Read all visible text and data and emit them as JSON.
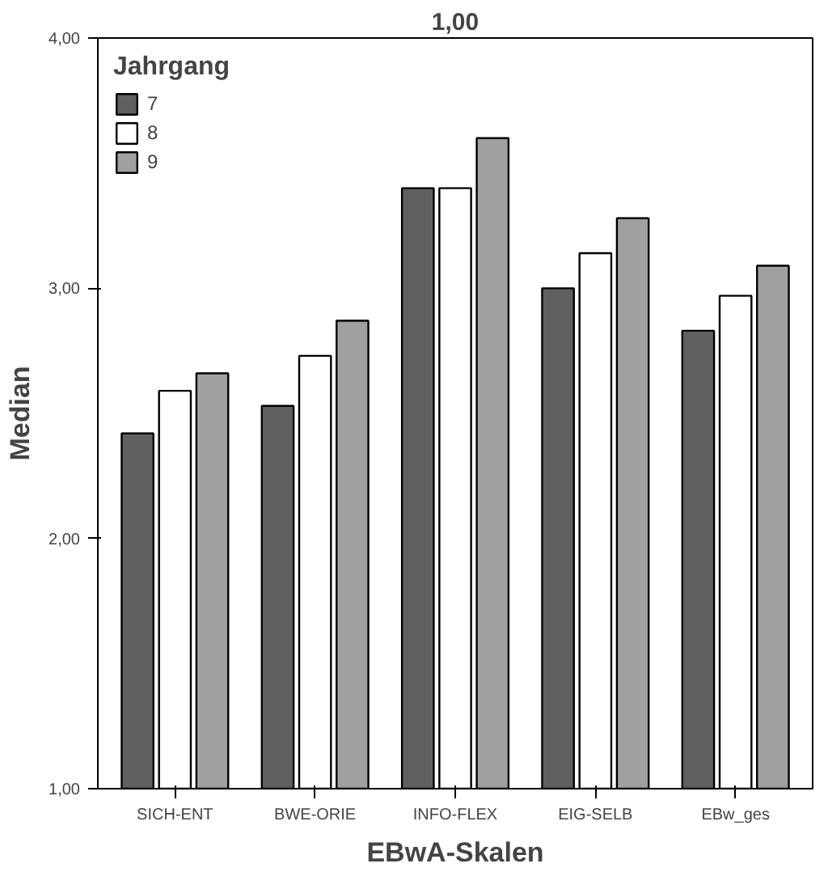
{
  "chart_data": {
    "type": "bar",
    "title": "1,00",
    "xlabel": "EBwA-Skalen",
    "ylabel": "Median",
    "legend_title": "Jahrgang",
    "categories": [
      "SICH-ENT",
      "BWE-ORIE",
      "INFO-FLEX",
      "EIG-SELB",
      "EBw_ges"
    ],
    "series": [
      {
        "name": "7",
        "color": "#606060",
        "values": [
          2.42,
          2.53,
          3.4,
          3.0,
          2.83
        ]
      },
      {
        "name": "8",
        "color": "#ffffff",
        "values": [
          2.59,
          2.73,
          3.4,
          3.14,
          2.97
        ]
      },
      {
        "name": "9",
        "color": "#a0a0a0",
        "values": [
          2.66,
          2.87,
          3.6,
          3.28,
          3.09
        ]
      }
    ],
    "ylim": [
      1,
      4
    ],
    "yticks": [
      {
        "value": 1,
        "label": "1,00"
      },
      {
        "value": 2,
        "label": "2,00"
      },
      {
        "value": 3,
        "label": "3,00"
      },
      {
        "value": 4,
        "label": "4,00"
      }
    ],
    "grid": false,
    "legend": "top left"
  }
}
